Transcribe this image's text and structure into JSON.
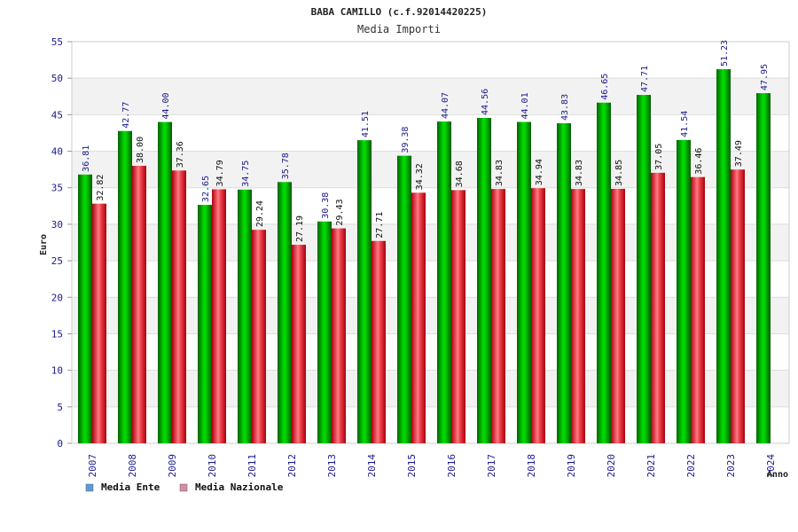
{
  "chart_data": {
    "type": "bar",
    "title": "BABA CAMILLO (c.f.92014420225)",
    "subtitle": "Media Importi",
    "ylabel": "Euro",
    "xlabel": "Anno",
    "ylim": [
      0,
      55
    ],
    "ytick_step": 5,
    "grid": true,
    "legend_position": "bottom-left",
    "categories": [
      "2007",
      "2008",
      "2009",
      "2010",
      "2011",
      "2012",
      "2013",
      "2014",
      "2015",
      "2016",
      "2017",
      "2018",
      "2019",
      "2020",
      "2021",
      "2022",
      "2023",
      "2024"
    ],
    "series": [
      {
        "name": "Media Ente",
        "legend_color": "#5b9bd5",
        "bar_color": "#00b800",
        "values": [
          36.81,
          42.77,
          44.0,
          32.65,
          34.75,
          35.78,
          30.38,
          41.51,
          39.38,
          44.07,
          44.56,
          44.01,
          43.83,
          46.65,
          47.71,
          41.54,
          51.23,
          47.95
        ]
      },
      {
        "name": "Media Nazionale",
        "legend_color": "#d98aa0",
        "bar_color": "#e8212b",
        "values": [
          32.82,
          38.0,
          37.36,
          34.79,
          29.24,
          27.19,
          29.43,
          27.71,
          34.32,
          34.68,
          34.83,
          34.94,
          34.83,
          34.85,
          37.05,
          36.46,
          37.49,
          null
        ]
      }
    ]
  }
}
